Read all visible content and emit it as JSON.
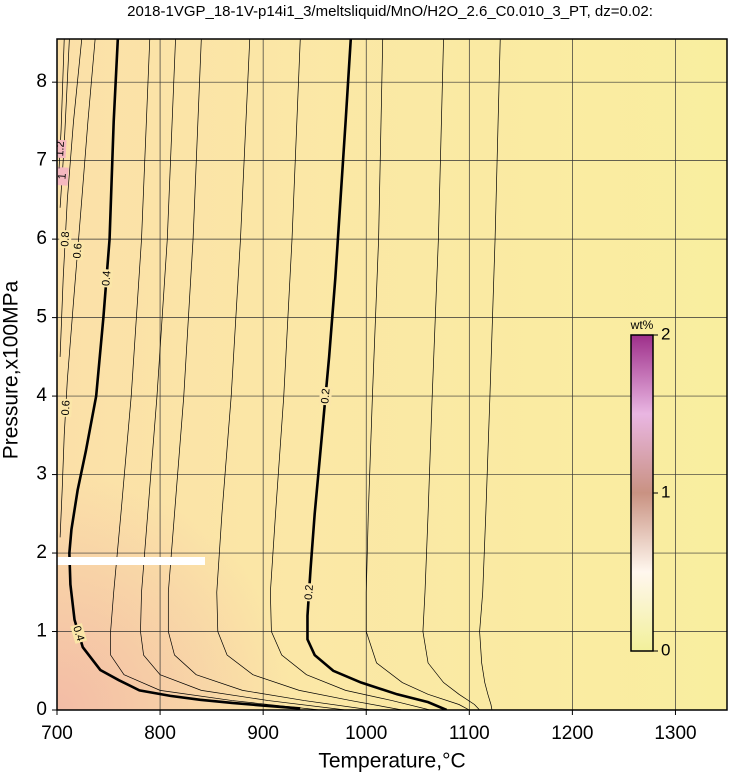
{
  "chart_data": {
    "type": "contour",
    "title": "2018-1VGP_18-1V-p14i1_3/meltsliquid/MnO/H2O_2.6_C0.010_3_PT, dz=0.02:",
    "x_label": "Temperature,°C",
    "y_label": "Pressure,x100MPa",
    "xlim": [
      700,
      1350
    ],
    "ylim": [
      0,
      8.55
    ],
    "xticks": [
      700,
      800,
      900,
      1000,
      1100,
      1200,
      1300
    ],
    "yticks": [
      0,
      1,
      2,
      3,
      4,
      5,
      6,
      7,
      8
    ],
    "grid": true,
    "line_color": "#000000",
    "colorbar": {
      "label": "wt%",
      "lim": [
        0,
        2
      ],
      "ticks": [
        0,
        1,
        2
      ],
      "colors": [
        "#f2f09a",
        "#fff7ee",
        "#c99282",
        "#e9b6e2",
        "#9e2f8a"
      ]
    },
    "contours": [
      {
        "level": 0.2,
        "bold": true,
        "x": [
          985,
          980,
          975,
          970,
          964,
          957,
          950,
          946,
          943,
          943,
          950,
          968,
          995,
          1030,
          1060,
          1078
        ],
        "y": [
          8.55,
          7.5,
          6.5,
          5.5,
          4.5,
          3.5,
          2.5,
          1.8,
          1.2,
          0.9,
          0.7,
          0.5,
          0.35,
          0.2,
          0.1,
          0
        ]
      },
      {
        "level": 0.4,
        "bold": true,
        "x": [
          759,
          755,
          751,
          745,
          738,
          728,
          720,
          714,
          712,
          713,
          717,
          725,
          742,
          760,
          780,
          810,
          839,
          870,
          897,
          936
        ],
        "y": [
          8.55,
          7.5,
          6,
          5,
          4,
          3.3,
          2.8,
          2.3,
          2,
          1.6,
          1.15,
          0.8,
          0.51,
          0.38,
          0.25,
          0.18,
          0.13,
          0.09,
          0.06,
          0.02
        ]
      },
      {
        "level": 0.6,
        "bold": false,
        "x": [
          737,
          730,
          724,
          716,
          710,
          707,
          705,
          703
        ],
        "y": [
          8.55,
          7.5,
          6.5,
          5.2,
          4.2,
          3.5,
          2.8,
          2.2
        ]
      },
      {
        "level": 0.8,
        "bold": false,
        "x": [
          724,
          716,
          710,
          706,
          703
        ],
        "y": [
          8.55,
          7.5,
          6.5,
          5.5,
          4.5
        ]
      },
      {
        "level": 1,
        "bold": false,
        "x": [
          712,
          707,
          703
        ],
        "y": [
          8.55,
          7.2,
          6.4
        ]
      },
      {
        "level": 1.2,
        "bold": false,
        "x": [
          707,
          704,
          702
        ],
        "y": [
          8.55,
          7.4,
          6.9
        ]
      },
      {
        "level": 0.38,
        "bold": false,
        "x": [
          790,
          782,
          772,
          762,
          755,
          752,
          752,
          765,
          800,
          870,
          955
        ],
        "y": [
          8.55,
          6,
          4,
          2.5,
          1.5,
          1,
          0.7,
          0.45,
          0.25,
          0.12,
          0
        ]
      },
      {
        "level": 0.34,
        "bold": false,
        "x": [
          815,
          807,
          797,
          788,
          782,
          781,
          784,
          800,
          840,
          905,
          980
        ],
        "y": [
          8.55,
          6,
          4,
          2.5,
          1.5,
          1,
          0.7,
          0.45,
          0.25,
          0.12,
          0
        ]
      },
      {
        "level": 0.3,
        "bold": false,
        "x": [
          840,
          832,
          823,
          814,
          808,
          808,
          814,
          835,
          880,
          940,
          1005
        ],
        "y": [
          8.55,
          6,
          4,
          2.5,
          1.5,
          1,
          0.7,
          0.45,
          0.25,
          0.12,
          0
        ]
      },
      {
        "level": 0.26,
        "bold": false,
        "x": [
          887,
          878,
          869,
          860,
          855,
          856,
          865,
          890,
          935,
          985,
          1035
        ],
        "y": [
          8.55,
          6,
          4,
          2.5,
          1.5,
          1,
          0.7,
          0.45,
          0.25,
          0.12,
          0
        ]
      },
      {
        "level": 0.22,
        "bold": false,
        "x": [
          936,
          928,
          920,
          912,
          907,
          908,
          918,
          942,
          980,
          1025,
          1062
        ],
        "y": [
          8.55,
          6,
          4,
          2.5,
          1.5,
          1,
          0.7,
          0.45,
          0.25,
          0.12,
          0
        ]
      },
      {
        "level": 0.18,
        "bold": false,
        "x": [
          1016,
          1012,
          1006,
          1002,
          1000,
          1000,
          1010,
          1035,
          1060,
          1090,
          1100
        ],
        "y": [
          8.55,
          6,
          4,
          2.5,
          1.5,
          1,
          0.6,
          0.35,
          0.2,
          0.07,
          0
        ]
      },
      {
        "level": 0.16,
        "bold": false,
        "x": [
          1075,
          1070,
          1064,
          1060,
          1057,
          1055,
          1060,
          1075,
          1090,
          1105,
          1110
        ],
        "y": [
          8.55,
          6,
          4,
          2.5,
          1.5,
          1,
          0.6,
          0.35,
          0.2,
          0.07,
          0
        ]
      },
      {
        "level": 0.14,
        "bold": false,
        "x": [
          1130,
          1125,
          1120,
          1116,
          1113,
          1110,
          1112,
          1115,
          1118,
          1121,
          1122
        ],
        "y": [
          8.55,
          6,
          4,
          2.5,
          1.5,
          1,
          0.6,
          0.35,
          0.2,
          0.07,
          0
        ]
      }
    ]
  }
}
